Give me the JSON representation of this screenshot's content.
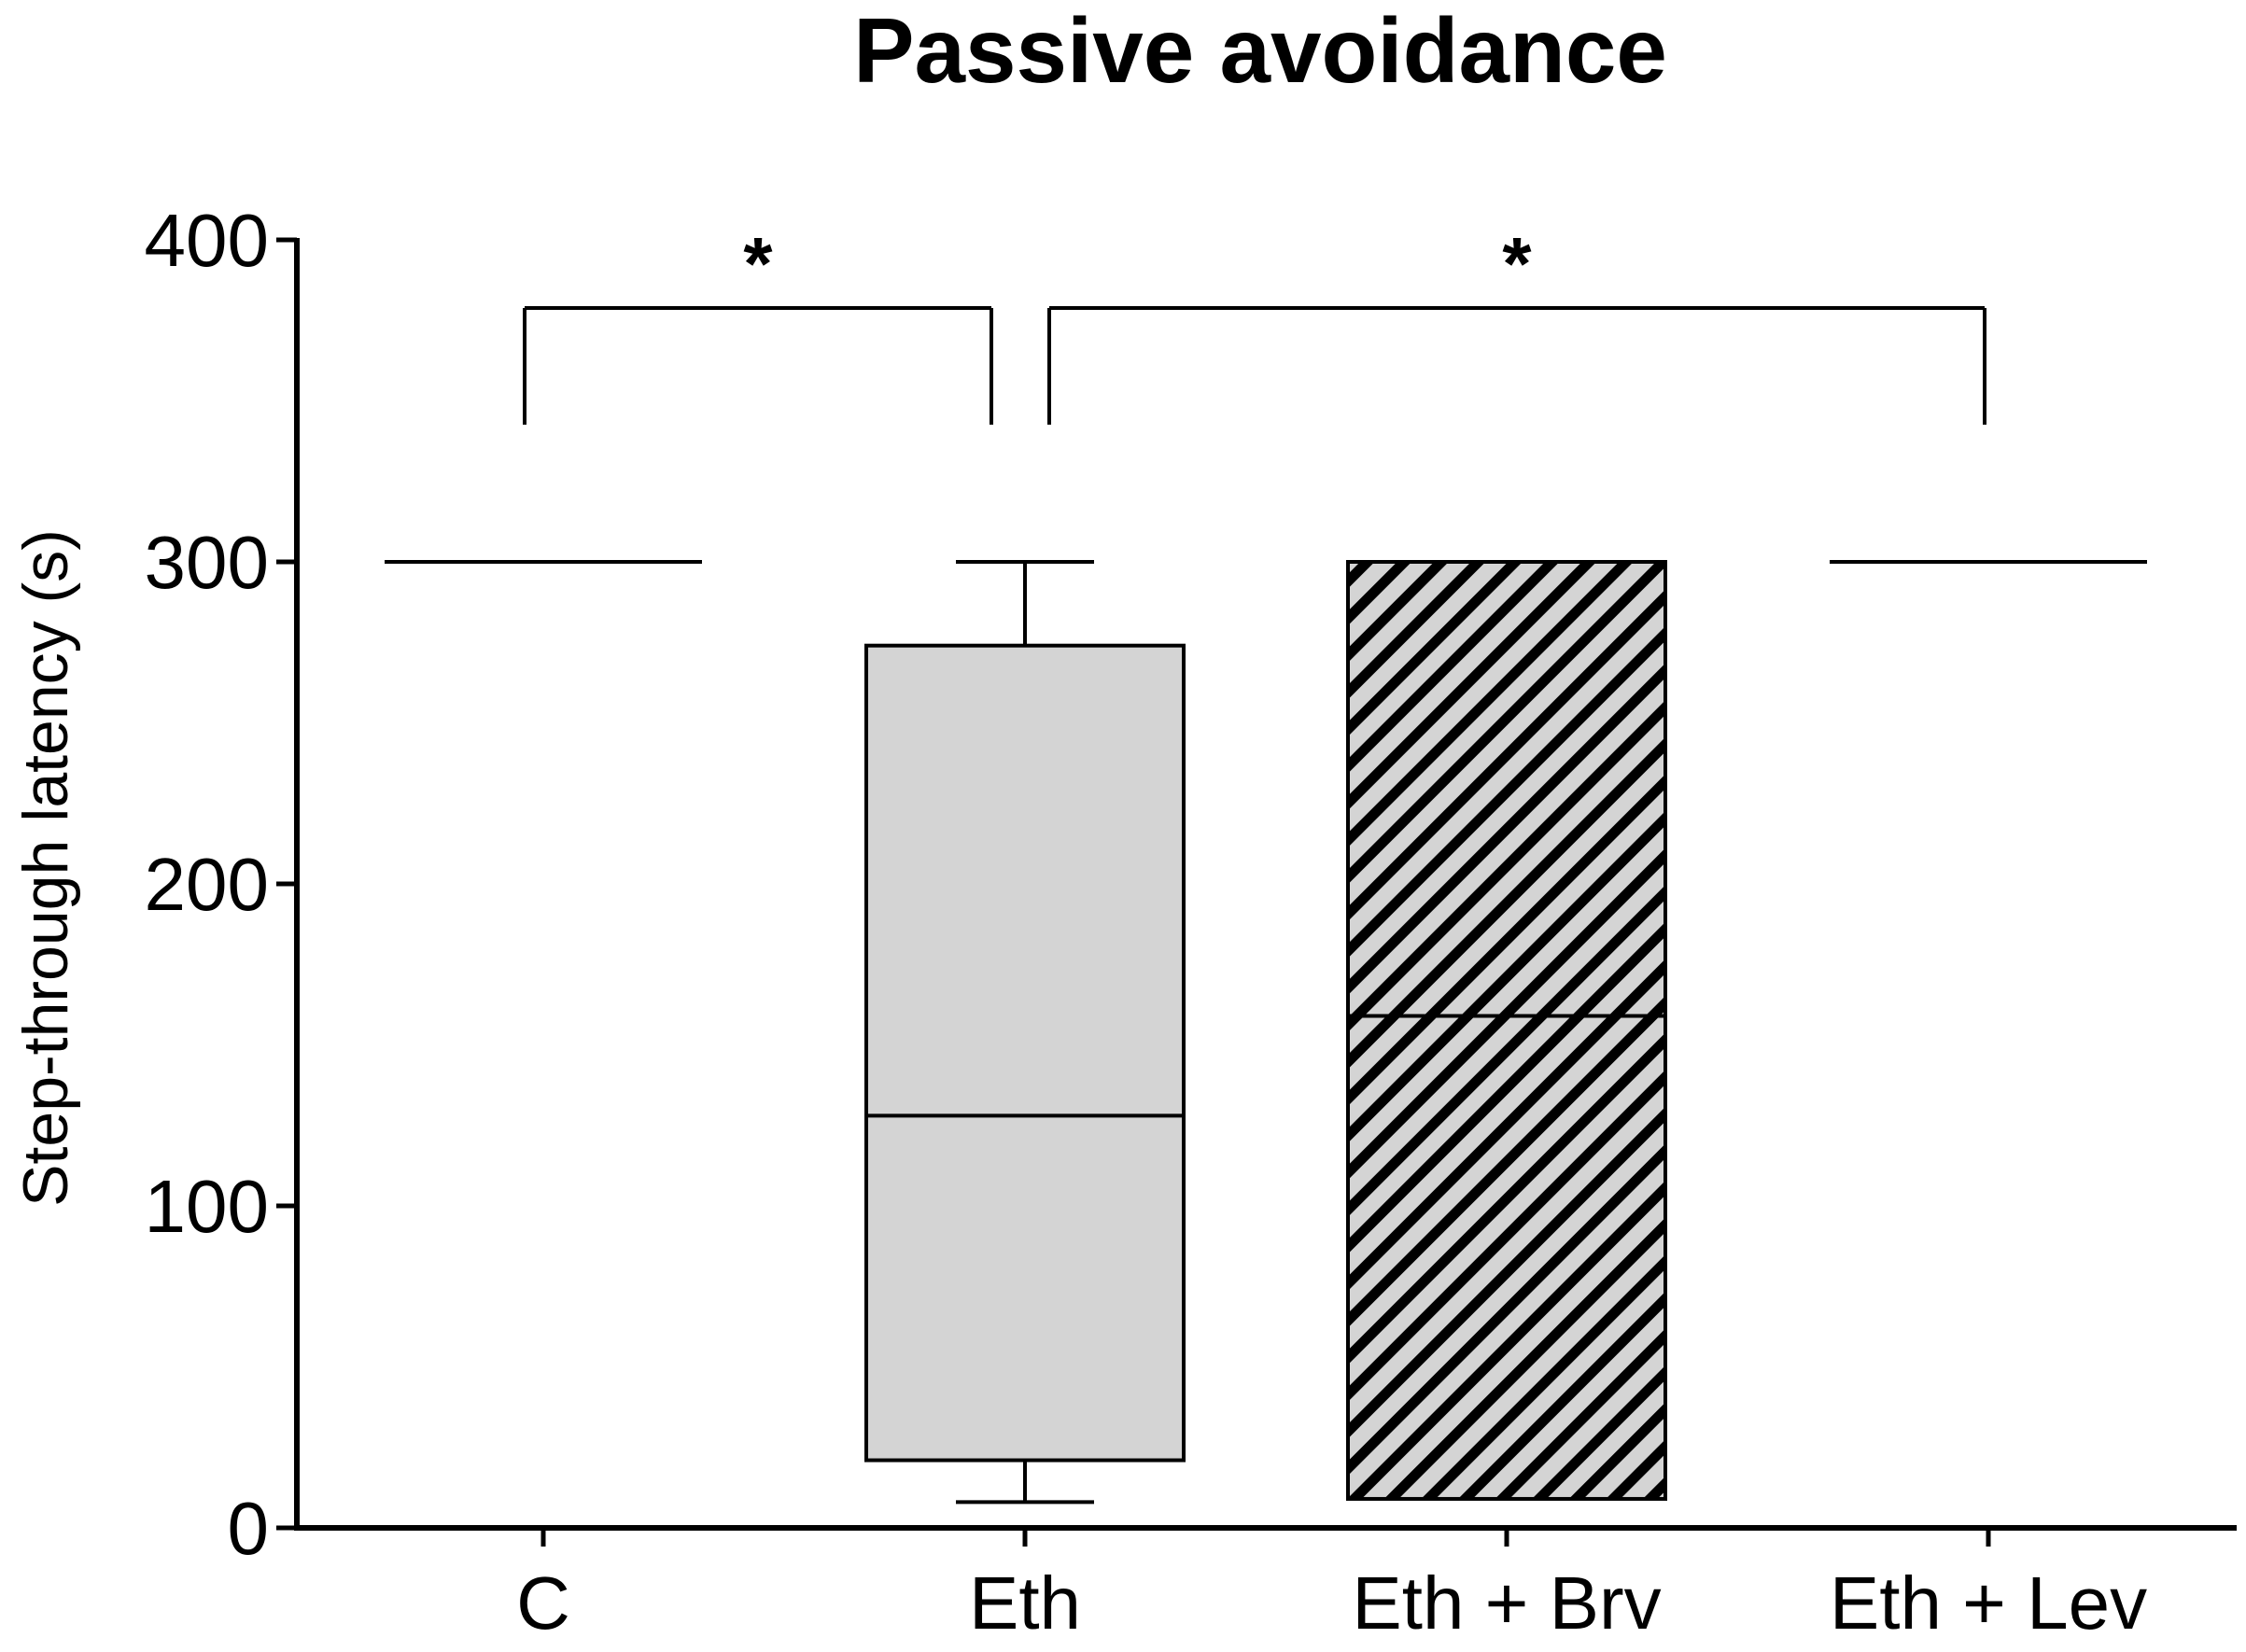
{
  "chart_data": {
    "type": "box",
    "title": "Passive avoidance",
    "xlabel": "",
    "ylabel": "Step-through latency (s)",
    "ylim": [
      0,
      400
    ],
    "yticks": [
      0,
      100,
      200,
      300,
      400
    ],
    "categories": [
      "C",
      "Eth",
      "Eth + Brv",
      "Eth + Lev"
    ],
    "boxes": [
      {
        "group": "C",
        "min": 300,
        "q1": 300,
        "median": 300,
        "q3": 300,
        "max": 300,
        "fill": "none"
      },
      {
        "group": "Eth",
        "min": 8,
        "q1": 21,
        "median": 128,
        "q3": 274,
        "max": 300,
        "fill": "gray"
      },
      {
        "group": "Eth + Brv",
        "min": 9,
        "q1": 9,
        "median": 159,
        "q3": 300,
        "max": 300,
        "fill": "hatched"
      },
      {
        "group": "Eth + Lev",
        "min": 300,
        "q1": 300,
        "median": 300,
        "q3": 300,
        "max": 300,
        "fill": "none"
      }
    ],
    "significance": [
      {
        "from": "C",
        "to": "Eth",
        "label": "*"
      },
      {
        "from": "Eth",
        "to": "Eth + Lev",
        "label": "*"
      }
    ],
    "colors": {
      "gray_fill": "#d4d4d4",
      "line": "#000000",
      "hatch": "#000000"
    }
  }
}
